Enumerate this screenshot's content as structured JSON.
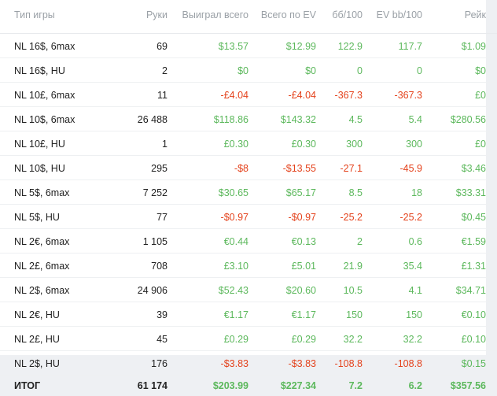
{
  "colors": {
    "positive": "#5cb85c",
    "negative": "#e4421c",
    "header": "#9aa0a6"
  },
  "columns": [
    "Тип игры",
    "Руки",
    "Выиграл всего",
    "Всего по EV",
    "бб/100",
    "EV bb/100",
    "Рейк"
  ],
  "rows": [
    {
      "game": "NL 16$, 6max",
      "hands": "69",
      "won": "$13.57",
      "ev": "$12.99",
      "bb100": "122.9",
      "evbb100": "117.7",
      "rake": "$1.09"
    },
    {
      "game": "NL 16$, HU",
      "hands": "2",
      "won": "$0",
      "ev": "$0",
      "bb100": "0",
      "evbb100": "0",
      "rake": "$0"
    },
    {
      "game": "NL 10£, 6max",
      "hands": "11",
      "won": "-£4.04",
      "ev": "-£4.04",
      "bb100": "-367.3",
      "evbb100": "-367.3",
      "rake": "£0"
    },
    {
      "game": "NL 10$, 6max",
      "hands": "26 488",
      "won": "$118.86",
      "ev": "$143.32",
      "bb100": "4.5",
      "evbb100": "5.4",
      "rake": "$280.56"
    },
    {
      "game": "NL 10£, HU",
      "hands": "1",
      "won": "£0.30",
      "ev": "£0.30",
      "bb100": "300",
      "evbb100": "300",
      "rake": "£0"
    },
    {
      "game": "NL 10$, HU",
      "hands": "295",
      "won": "-$8",
      "ev": "-$13.55",
      "bb100": "-27.1",
      "evbb100": "-45.9",
      "rake": "$3.46"
    },
    {
      "game": "NL 5$, 6max",
      "hands": "7 252",
      "won": "$30.65",
      "ev": "$65.17",
      "bb100": "8.5",
      "evbb100": "18",
      "rake": "$33.31"
    },
    {
      "game": "NL 5$, HU",
      "hands": "77",
      "won": "-$0.97",
      "ev": "-$0.97",
      "bb100": "-25.2",
      "evbb100": "-25.2",
      "rake": "$0.45"
    },
    {
      "game": "NL 2€, 6max",
      "hands": "1 105",
      "won": "€0.44",
      "ev": "€0.13",
      "bb100": "2",
      "evbb100": "0.6",
      "rake": "€1.59"
    },
    {
      "game": "NL 2£, 6max",
      "hands": "708",
      "won": "£3.10",
      "ev": "£5.01",
      "bb100": "21.9",
      "evbb100": "35.4",
      "rake": "£1.31"
    },
    {
      "game": "NL 2$, 6max",
      "hands": "24 906",
      "won": "$52.43",
      "ev": "$20.60",
      "bb100": "10.5",
      "evbb100": "4.1",
      "rake": "$34.71"
    },
    {
      "game": "NL 2€, HU",
      "hands": "39",
      "won": "€1.17",
      "ev": "€1.17",
      "bb100": "150",
      "evbb100": "150",
      "rake": "€0.10"
    },
    {
      "game": "NL 2£, HU",
      "hands": "45",
      "won": "£0.29",
      "ev": "£0.29",
      "bb100": "32.2",
      "evbb100": "32.2",
      "rake": "£0.10"
    },
    {
      "game": "NL 2$, HU",
      "hands": "176",
      "won": "-$3.83",
      "ev": "-$3.83",
      "bb100": "-108.8",
      "evbb100": "-108.8",
      "rake": "$0.15"
    }
  ],
  "total": {
    "game": "ИТОГ",
    "hands": "61 174",
    "won": "$203.99",
    "ev": "$227.34",
    "bb100": "7.2",
    "evbb100": "6.2",
    "rake": "$357.56"
  }
}
